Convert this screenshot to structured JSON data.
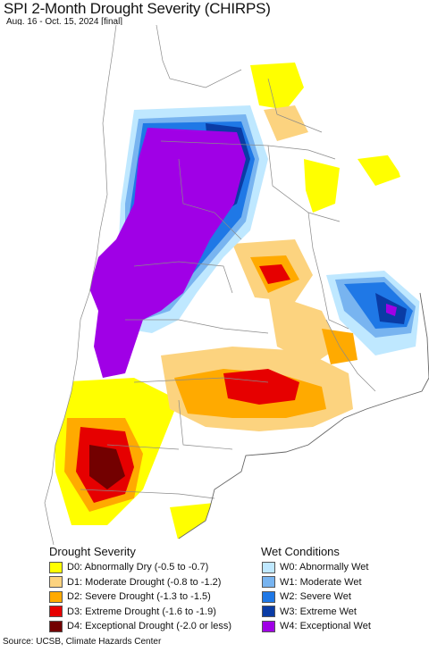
{
  "title": "SPI 2-Month Drought Severity (CHIRPS)",
  "subtitle": "Aug. 16 - Oct. 15, 2024 [final]",
  "legend": {
    "drought_heading": "Drought Severity",
    "wet_heading": "Wet Conditions",
    "drought_items": [
      {
        "label": "D0: Abnormally Dry (-0.5 to -0.7)",
        "color": "#ffff00"
      },
      {
        "label": "D1: Moderate Drought (-0.8 to -1.2)",
        "color": "#fcd37f"
      },
      {
        "label": "D2: Severe Drought (-1.3 to -1.5)",
        "color": "#ffaa00"
      },
      {
        "label": "D3: Extreme Drought (-1.6 to -1.9)",
        "color": "#e60000"
      },
      {
        "label": "D4: Exceptional Drought (-2.0 or less)",
        "color": "#730000"
      }
    ],
    "wet_items": [
      {
        "label": "W0: Abnormally Wet",
        "color": "#bfe8ff"
      },
      {
        "label": "W1: Moderate Wet",
        "color": "#78b4f0"
      },
      {
        "label": "W2: Severe Wet",
        "color": "#1f78e6"
      },
      {
        "label": "W3: Extreme Wet",
        "color": "#0a3ca5"
      },
      {
        "label": "W4: Exceptional Wet",
        "color": "#a000e6"
      }
    ]
  },
  "source": "Source: UCSB, Climate Hazards Center"
}
